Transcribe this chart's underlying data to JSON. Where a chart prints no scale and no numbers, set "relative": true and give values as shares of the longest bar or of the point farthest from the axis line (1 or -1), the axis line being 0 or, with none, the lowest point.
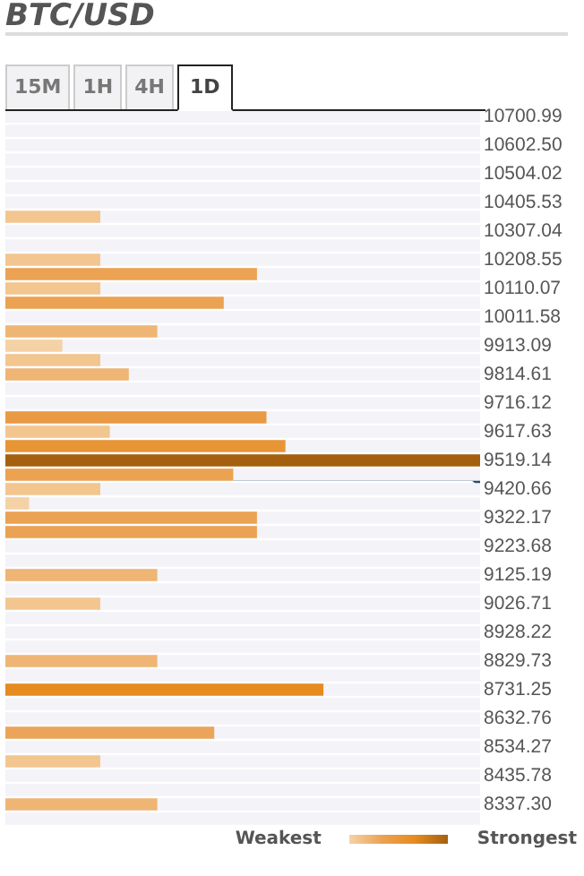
{
  "chart_data": {
    "type": "bar",
    "title": "BTC/USD",
    "orientation": "horizontal",
    "relative": true,
    "annotations": [
      "15M",
      "1H",
      "4H",
      "1D",
      "Weakest",
      "Strongest"
    ],
    "categories": [
      "10700.99",
      null,
      "10602.50",
      null,
      "10504.02",
      null,
      "10405.53",
      null,
      "10307.04",
      null,
      "10208.55",
      null,
      "10110.07",
      null,
      "10011.58",
      null,
      "9913.09",
      null,
      "9814.61",
      null,
      "9716.12",
      null,
      "9617.63",
      null,
      "9519.14",
      null,
      "9420.66",
      null,
      "9322.17",
      null,
      "9223.68",
      null,
      "9125.19",
      null,
      "9026.71",
      null,
      "8928.22",
      null,
      "8829.73",
      null,
      "8731.25",
      null,
      "8632.76",
      null,
      "8534.27",
      null,
      "8435.78",
      null,
      "8337.30",
      null
    ],
    "values": [
      0,
      0,
      0,
      0,
      0,
      0,
      0,
      0.2,
      0,
      0,
      0.2,
      0.53,
      0.2,
      0.46,
      0,
      0.32,
      0.12,
      0.2,
      0.26,
      0,
      0,
      0.55,
      0.22,
      0.59,
      1,
      0.48,
      0.2,
      0.05,
      0.53,
      0.53,
      0,
      0,
      0.32,
      0,
      0.2,
      0,
      0,
      0,
      0.32,
      0,
      0.67,
      0,
      0,
      0.44,
      0,
      0.2,
      0,
      0,
      0.32,
      0
    ],
    "colors": [
      "#f3c690",
      "#f3c690",
      "#f3c690",
      "#f3c690",
      "#f3c690",
      "#f3c690",
      "#f3c690",
      "#f3c690",
      "#f3c690",
      "#f3c690",
      "#f3c690",
      "#eba252",
      "#f3c690",
      "#eba252",
      "#f3c690",
      "#efb574",
      "#f5d2a6",
      "#f3c690",
      "#efb574",
      "#f3c690",
      "#f3c690",
      "#e99a45",
      "#f3c690",
      "#e89535",
      "#a5600f",
      "#eba252",
      "#f3c690",
      "#f5d2a6",
      "#eba252",
      "#eba252",
      "#f3c690",
      "#f3c690",
      "#efb574",
      "#f3c690",
      "#f3c690",
      "#f3c690",
      "#f3c690",
      "#f3c690",
      "#efb574",
      "#f3c690",
      "#e58b1f",
      "#f3c690",
      "#f3c690",
      "#eba55a",
      "#f3c690",
      "#f3c690",
      "#f3c690",
      "#f3c690",
      "#efb574",
      "#f3c690"
    ]
  }
}
